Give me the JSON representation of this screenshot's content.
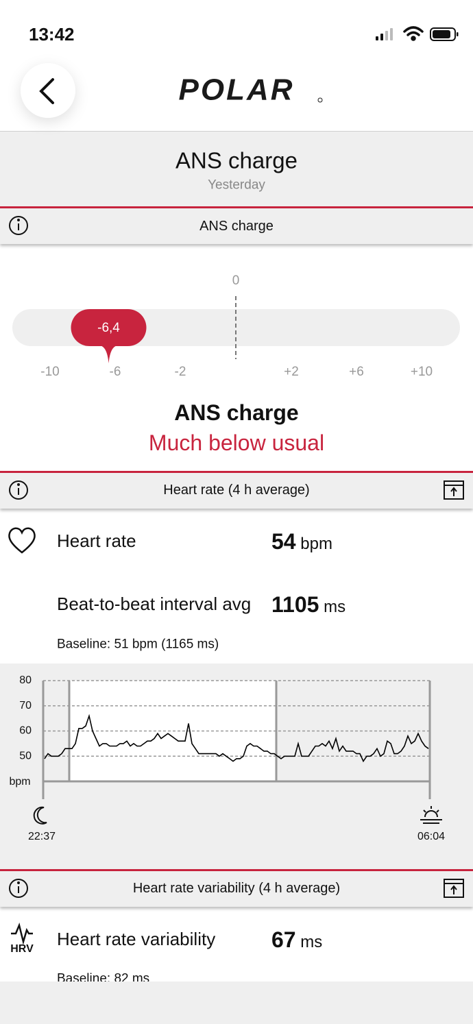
{
  "status_bar": {
    "time": "13:42"
  },
  "header": {
    "logo": "POLAR"
  },
  "page_title": {
    "title": "ANS charge",
    "subtitle": "Yesterday"
  },
  "ans_section": {
    "header": "ANS charge",
    "scale": {
      "value": -6.4,
      "value_label": "-6,4",
      "center_tick": 0,
      "ticks": [
        -10,
        -6,
        -2,
        {
          "value": 2,
          "label": "+2"
        },
        {
          "value": 6,
          "label": "+6"
        },
        {
          "value": 10,
          "label": "+10"
        }
      ]
    },
    "result_title": "ANS charge",
    "result_text": "Much below usual"
  },
  "hr_section": {
    "header": "Heart rate (4 h average)",
    "rows": [
      {
        "label": "Heart rate",
        "value": 54,
        "unit": "bpm"
      },
      {
        "label": "Beat-to-beat interval avg",
        "value": 1105,
        "unit": "ms"
      }
    ],
    "baseline": "Baseline: 51 bpm (1165 ms)"
  },
  "heart_rate_chart": {
    "type": "line",
    "color": "#000000",
    "grid": true,
    "ylim": [
      40,
      80
    ],
    "yticks": [
      50,
      60,
      70,
      80
    ],
    "y_unit": "bpm",
    "x_labels": [
      "22:37",
      "06:04"
    ],
    "values": [
      49,
      51,
      50,
      50,
      50,
      51,
      53,
      53,
      53,
      55,
      61,
      61,
      62,
      66,
      60,
      57,
      54,
      55,
      55,
      54,
      54,
      54,
      55,
      55,
      56,
      54,
      55,
      54,
      54,
      55,
      56,
      56,
      57,
      59,
      57,
      58,
      59,
      58,
      57,
      56,
      56,
      56,
      63,
      55,
      53,
      51,
      51,
      51,
      51,
      51,
      51,
      50,
      51,
      50,
      49,
      48,
      49,
      49,
      50,
      54,
      55,
      54,
      54,
      53,
      52,
      52,
      51,
      51,
      50,
      49,
      50,
      50,
      50,
      50,
      55,
      50,
      50,
      50,
      52,
      54,
      54,
      55,
      54,
      56,
      53,
      57,
      52,
      54,
      52,
      52,
      52,
      51,
      51,
      48,
      50,
      50,
      51,
      53,
      50,
      51,
      56,
      55,
      51,
      51,
      52,
      54,
      58,
      55,
      56,
      59,
      56,
      54,
      53
    ]
  },
  "hrv_section": {
    "header": "Heart rate variability (4 h average)",
    "icon_label": "HRV",
    "rows": [
      {
        "label": "Heart rate variability",
        "value": 67,
        "unit": "ms"
      }
    ],
    "baseline": "Baseline: 82 ms"
  }
}
